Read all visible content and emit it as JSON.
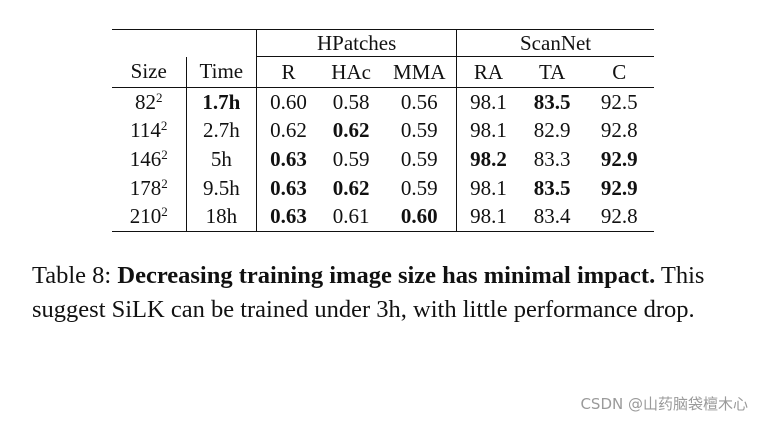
{
  "table": {
    "group_headers": {
      "hpatches": "HPatches",
      "scannet": "ScanNet"
    },
    "columns": [
      "Size",
      "Time",
      "R",
      "HAc",
      "MMA",
      "RA",
      "TA",
      "C"
    ],
    "rows": [
      {
        "size_base": "82",
        "size_exp": "2",
        "time": "1.7h",
        "r": "0.60",
        "hac": "0.58",
        "mma": "0.56",
        "ra": "98.1",
        "ta": "83.5",
        "c": "92.5"
      },
      {
        "size_base": "114",
        "size_exp": "2",
        "time": "2.7h",
        "r": "0.62",
        "hac": "0.62",
        "mma": "0.59",
        "ra": "98.1",
        "ta": "82.9",
        "c": "92.8"
      },
      {
        "size_base": "146",
        "size_exp": "2",
        "time": "5h",
        "r": "0.63",
        "hac": "0.59",
        "mma": "0.59",
        "ra": "98.2",
        "ta": "83.3",
        "c": "92.9"
      },
      {
        "size_base": "178",
        "size_exp": "2",
        "time": "9.5h",
        "r": "0.63",
        "hac": "0.62",
        "mma": "0.59",
        "ra": "98.1",
        "ta": "83.5",
        "c": "92.9"
      },
      {
        "size_base": "210",
        "size_exp": "2",
        "time": "18h",
        "r": "0.63",
        "hac": "0.61",
        "mma": "0.60",
        "ra": "98.1",
        "ta": "83.4",
        "c": "92.8"
      }
    ]
  },
  "caption": {
    "label": "Table 8:",
    "bold": "Decreasing training image size has minimal impact.",
    "rest": "This suggest SiLK can be trained under 3h, with little performance drop."
  },
  "watermark": "CSDN @山药脑袋檀木心"
}
